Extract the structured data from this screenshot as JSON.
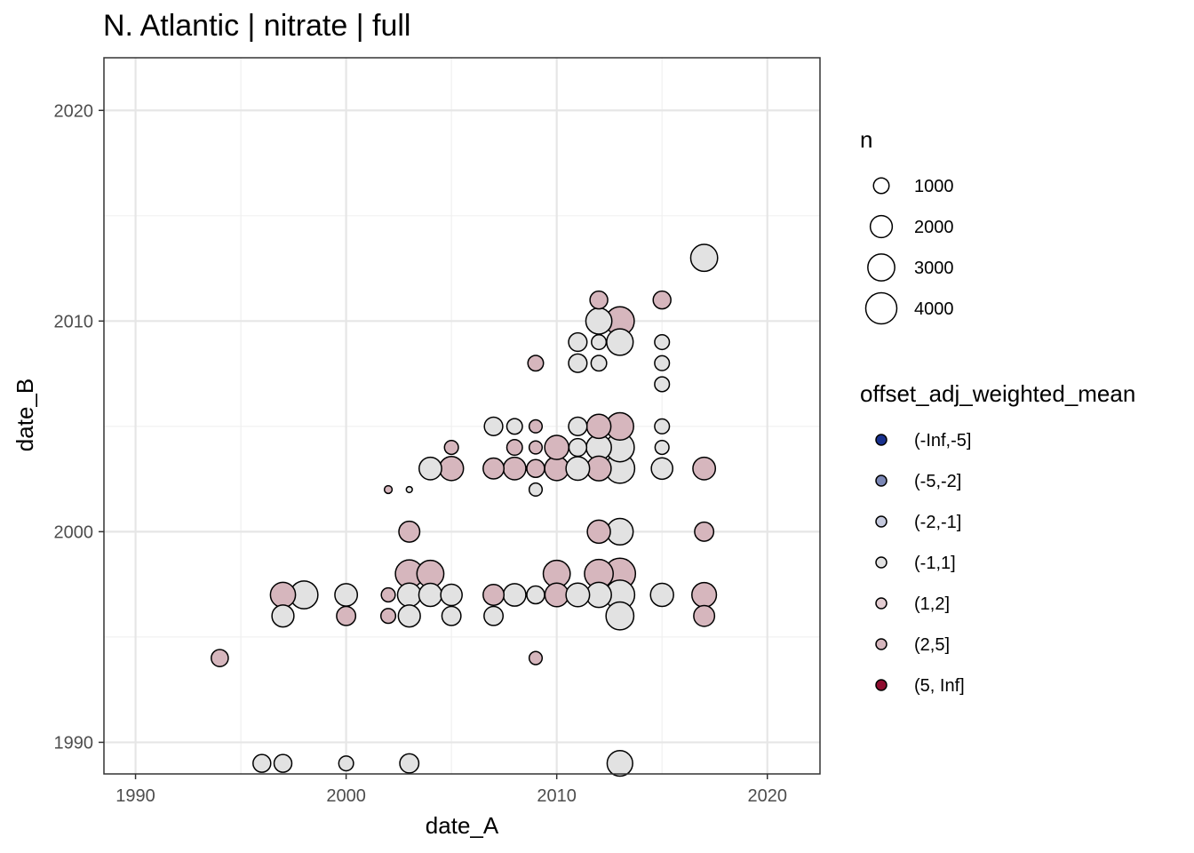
{
  "chart_data": {
    "type": "scatter",
    "title": "N. Atlantic | nitrate | full",
    "xlabel": "date_A",
    "ylabel": "date_B",
    "xlim": [
      1988.5,
      2022.5
    ],
    "ylim": [
      1988.5,
      2022.5
    ],
    "x_ticks": [
      "1990",
      "2000",
      "2010",
      "2020"
    ],
    "y_ticks": [
      "1990",
      "2000",
      "2010",
      "2020"
    ],
    "grid": true,
    "legend_position": "right",
    "size_legend": {
      "title": "n",
      "entries": [
        {
          "label": "1000",
          "value": 1000
        },
        {
          "label": "2000",
          "value": 2000
        },
        {
          "label": "3000",
          "value": 3000
        },
        {
          "label": "4000",
          "value": 4000
        }
      ]
    },
    "color_legend": {
      "title": "offset_adj_weighted_mean",
      "entries": [
        {
          "label": "(-Inf,-5]",
          "color": "#18318e"
        },
        {
          "label": "(-5,-2]",
          "color": "#7b87b5"
        },
        {
          "label": "(-2,-1]",
          "color": "#c5c9dd"
        },
        {
          "label": "(-1,1]",
          "color": "#e2e2e2"
        },
        {
          "label": "(1,2]",
          "color": "#e4cdd2"
        },
        {
          "label": "(2,5]",
          "color": "#d6b6bd"
        },
        {
          "label": "(5, Inf]",
          "color": "#8e0d2f"
        }
      ]
    },
    "points": [
      {
        "x": 1994,
        "y": 1994,
        "n": 1200,
        "bin": "(2,5]"
      },
      {
        "x": 1996,
        "y": 1989,
        "n": 1300,
        "bin": "(-1,1]"
      },
      {
        "x": 1997,
        "y": 1989,
        "n": 1300,
        "bin": "(-1,1]"
      },
      {
        "x": 2000,
        "y": 1989,
        "n": 900,
        "bin": "(-1,1]"
      },
      {
        "x": 2003,
        "y": 1989,
        "n": 1500,
        "bin": "(-1,1]"
      },
      {
        "x": 2013,
        "y": 1989,
        "n": 2700,
        "bin": "(-1,1]"
      },
      {
        "x": 1997,
        "y": 1996,
        "n": 2000,
        "bin": "(-1,1]"
      },
      {
        "x": 1997,
        "y": 1997,
        "n": 2600,
        "bin": "(2,5]"
      },
      {
        "x": 1998,
        "y": 1997,
        "n": 3200,
        "bin": "(-1,1]"
      },
      {
        "x": 2000,
        "y": 1996,
        "n": 1500,
        "bin": "(2,5]"
      },
      {
        "x": 2000,
        "y": 1997,
        "n": 2100,
        "bin": "(-1,1]"
      },
      {
        "x": 2002,
        "y": 1996,
        "n": 900,
        "bin": "(2,5]"
      },
      {
        "x": 2002,
        "y": 1997,
        "n": 800,
        "bin": "(2,5]"
      },
      {
        "x": 2002,
        "y": 2002,
        "n": 250,
        "bin": "(2,5]"
      },
      {
        "x": 2003,
        "y": 1996,
        "n": 2000,
        "bin": "(-1,1]"
      },
      {
        "x": 2003,
        "y": 1997,
        "n": 2300,
        "bin": "(-1,1]"
      },
      {
        "x": 2003,
        "y": 1998,
        "n": 3200,
        "bin": "(2,5]"
      },
      {
        "x": 2003,
        "y": 2000,
        "n": 1800,
        "bin": "(2,5]"
      },
      {
        "x": 2003,
        "y": 2002,
        "n": 150,
        "bin": "(-1,1]"
      },
      {
        "x": 2004,
        "y": 1997,
        "n": 2200,
        "bin": "(-1,1]"
      },
      {
        "x": 2004,
        "y": 1998,
        "n": 3000,
        "bin": "(2,5]"
      },
      {
        "x": 2004,
        "y": 2003,
        "n": 2100,
        "bin": "(-1,1]"
      },
      {
        "x": 2005,
        "y": 1996,
        "n": 1500,
        "bin": "(-1,1]"
      },
      {
        "x": 2005,
        "y": 1997,
        "n": 1900,
        "bin": "(-1,1]"
      },
      {
        "x": 2005,
        "y": 2003,
        "n": 2400,
        "bin": "(2,5]"
      },
      {
        "x": 2005,
        "y": 2004,
        "n": 800,
        "bin": "(2,5]"
      },
      {
        "x": 2007,
        "y": 1996,
        "n": 1500,
        "bin": "(-1,1]"
      },
      {
        "x": 2007,
        "y": 1997,
        "n": 1800,
        "bin": "(2,5]"
      },
      {
        "x": 2007,
        "y": 2003,
        "n": 1800,
        "bin": "(2,5]"
      },
      {
        "x": 2007,
        "y": 2005,
        "n": 1400,
        "bin": "(-1,1]"
      },
      {
        "x": 2008,
        "y": 1997,
        "n": 2100,
        "bin": "(-1,1]"
      },
      {
        "x": 2008,
        "y": 2003,
        "n": 2100,
        "bin": "(2,5]"
      },
      {
        "x": 2008,
        "y": 2004,
        "n": 1000,
        "bin": "(2,5]"
      },
      {
        "x": 2008,
        "y": 2005,
        "n": 1000,
        "bin": "(-1,1]"
      },
      {
        "x": 2009,
        "y": 1994,
        "n": 700,
        "bin": "(2,5]"
      },
      {
        "x": 2009,
        "y": 1997,
        "n": 1300,
        "bin": "(-1,1]"
      },
      {
        "x": 2009,
        "y": 2002,
        "n": 700,
        "bin": "(-1,1]"
      },
      {
        "x": 2009,
        "y": 2003,
        "n": 1300,
        "bin": "(2,5]"
      },
      {
        "x": 2009,
        "y": 2004,
        "n": 700,
        "bin": "(2,5]"
      },
      {
        "x": 2009,
        "y": 2005,
        "n": 700,
        "bin": "(2,5]"
      },
      {
        "x": 2009,
        "y": 2008,
        "n": 1000,
        "bin": "(2,5]"
      },
      {
        "x": 2010,
        "y": 1997,
        "n": 2300,
        "bin": "(2,5]"
      },
      {
        "x": 2010,
        "y": 1998,
        "n": 3000,
        "bin": "(2,5]"
      },
      {
        "x": 2010,
        "y": 2003,
        "n": 2400,
        "bin": "(2,5]"
      },
      {
        "x": 2010,
        "y": 2004,
        "n": 2400,
        "bin": "(2,5]"
      },
      {
        "x": 2011,
        "y": 1997,
        "n": 2300,
        "bin": "(-1,1]"
      },
      {
        "x": 2011,
        "y": 2003,
        "n": 2300,
        "bin": "(-1,1]"
      },
      {
        "x": 2011,
        "y": 2004,
        "n": 1300,
        "bin": "(-1,1]"
      },
      {
        "x": 2011,
        "y": 2005,
        "n": 1400,
        "bin": "(-1,1]"
      },
      {
        "x": 2011,
        "y": 2008,
        "n": 1400,
        "bin": "(-1,1]"
      },
      {
        "x": 2011,
        "y": 2009,
        "n": 1400,
        "bin": "(-1,1]"
      },
      {
        "x": 2012,
        "y": 1997,
        "n": 2600,
        "bin": "(-1,1]"
      },
      {
        "x": 2012,
        "y": 1998,
        "n": 3400,
        "bin": "(2,5]"
      },
      {
        "x": 2012,
        "y": 2000,
        "n": 2200,
        "bin": "(2,5]"
      },
      {
        "x": 2012,
        "y": 2003,
        "n": 2500,
        "bin": "(2,5]"
      },
      {
        "x": 2012,
        "y": 2004,
        "n": 2600,
        "bin": "(-1,1]"
      },
      {
        "x": 2012,
        "y": 2005,
        "n": 2400,
        "bin": "(2,5]"
      },
      {
        "x": 2012,
        "y": 2008,
        "n": 1000,
        "bin": "(-1,1]"
      },
      {
        "x": 2012,
        "y": 2009,
        "n": 900,
        "bin": "(-1,1]"
      },
      {
        "x": 2012,
        "y": 2010,
        "n": 2800,
        "bin": "(-1,1]"
      },
      {
        "x": 2012,
        "y": 2011,
        "n": 1300,
        "bin": "(2,5]"
      },
      {
        "x": 2013,
        "y": 1996,
        "n": 3200,
        "bin": "(-1,1]"
      },
      {
        "x": 2013,
        "y": 1997,
        "n": 3600,
        "bin": "(-1,1]"
      },
      {
        "x": 2013,
        "y": 1998,
        "n": 4000,
        "bin": "(2,5]"
      },
      {
        "x": 2013,
        "y": 2000,
        "n": 2900,
        "bin": "(-1,1]"
      },
      {
        "x": 2013,
        "y": 2003,
        "n": 3600,
        "bin": "(-1,1]"
      },
      {
        "x": 2013,
        "y": 2004,
        "n": 3400,
        "bin": "(-1,1]"
      },
      {
        "x": 2013,
        "y": 2005,
        "n": 3100,
        "bin": "(2,5]"
      },
      {
        "x": 2013,
        "y": 2009,
        "n": 2900,
        "bin": "(-1,1]"
      },
      {
        "x": 2013,
        "y": 2010,
        "n": 3400,
        "bin": "(2,5]"
      },
      {
        "x": 2015,
        "y": 1997,
        "n": 2200,
        "bin": "(-1,1]"
      },
      {
        "x": 2015,
        "y": 2003,
        "n": 1900,
        "bin": "(-1,1]"
      },
      {
        "x": 2015,
        "y": 2004,
        "n": 800,
        "bin": "(-1,1]"
      },
      {
        "x": 2015,
        "y": 2005,
        "n": 900,
        "bin": "(-1,1]"
      },
      {
        "x": 2015,
        "y": 2007,
        "n": 900,
        "bin": "(-1,1]"
      },
      {
        "x": 2015,
        "y": 2008,
        "n": 900,
        "bin": "(-1,1]"
      },
      {
        "x": 2015,
        "y": 2009,
        "n": 900,
        "bin": "(-1,1]"
      },
      {
        "x": 2015,
        "y": 2011,
        "n": 1300,
        "bin": "(2,5]"
      },
      {
        "x": 2017,
        "y": 1996,
        "n": 1800,
        "bin": "(2,5]"
      },
      {
        "x": 2017,
        "y": 1997,
        "n": 2500,
        "bin": "(2,5]"
      },
      {
        "x": 2017,
        "y": 2000,
        "n": 1500,
        "bin": "(2,5]"
      },
      {
        "x": 2017,
        "y": 2003,
        "n": 2100,
        "bin": "(2,5]"
      },
      {
        "x": 2017,
        "y": 2013,
        "n": 3000,
        "bin": "(-1,1]"
      }
    ]
  }
}
